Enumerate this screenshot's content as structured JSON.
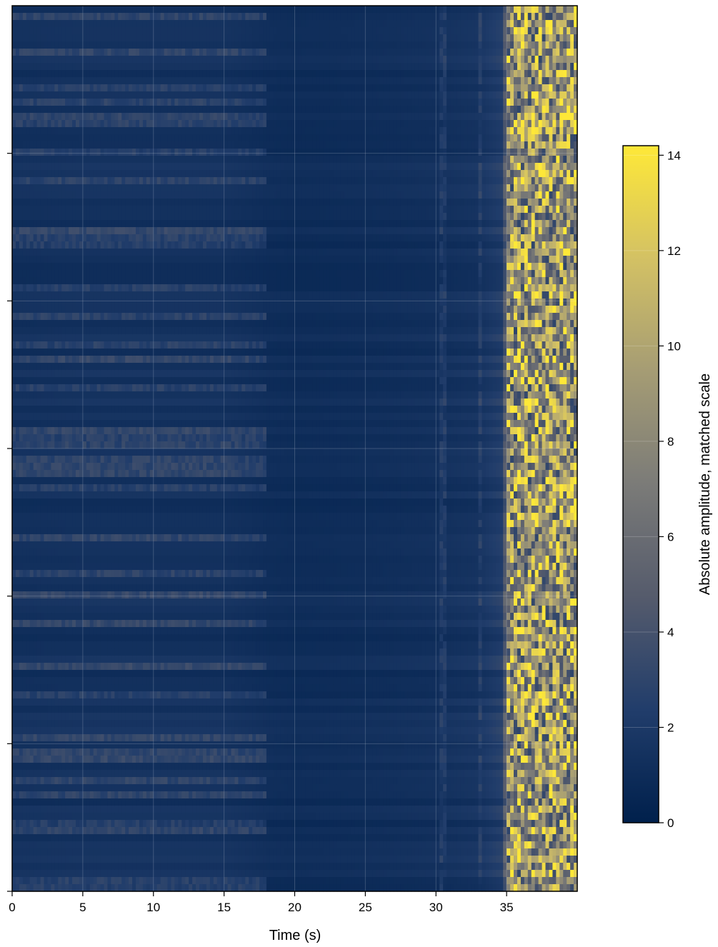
{
  "chart_data": {
    "type": "heatmap",
    "title": "",
    "xlabel": "Time (s)",
    "ylabel": "",
    "xlim": [
      0,
      40
    ],
    "x_ticks": [
      0,
      5,
      10,
      15,
      20,
      25,
      30,
      35
    ],
    "x_tick_labels": [
      "0",
      "5",
      "10",
      "15",
      "20",
      "25",
      "30",
      "35"
    ],
    "y_tick_count": 6,
    "y_tick_labels_shown": false,
    "grid": true,
    "colormap": "cividis",
    "colormap_stops": [
      "#00204c",
      "#213d6b",
      "#555b6c",
      "#7b7b78",
      "#a59c74",
      "#d3c164",
      "#fee838"
    ],
    "colorbar": {
      "label": "Absolute amplitude, matched scale",
      "range": [
        0,
        14.2
      ],
      "ticks": [
        0,
        2,
        4,
        6,
        8,
        10,
        12,
        14
      ],
      "tick_labels": [
        "0",
        "2",
        "4",
        "6",
        "8",
        "10",
        "12",
        "14"
      ]
    },
    "description_values": {
      "background_level": 1.2,
      "noisy_rows_level_0_to_18s": 3.0,
      "onset_time_s": 35,
      "post_onset_level_range": [
        4,
        14
      ]
    },
    "time_columns": [
      {
        "t": 0,
        "value": 1.3
      },
      {
        "t": 5,
        "value": 1.4
      },
      {
        "t": 10,
        "value": 1.4
      },
      {
        "t": 15,
        "value": 1.4
      },
      {
        "t": 18,
        "value": 1.1
      },
      {
        "t": 20,
        "value": 1.0
      },
      {
        "t": 25,
        "value": 1.1
      },
      {
        "t": 30,
        "value": 1.3
      },
      {
        "t": 33,
        "value": 1.6
      },
      {
        "t": 34.8,
        "value": 2.5
      },
      {
        "t": 35.2,
        "value": 13.5
      },
      {
        "t": 36,
        "value": 11.0
      },
      {
        "t": 37,
        "value": 9.5
      },
      {
        "t": 38,
        "value": 10.5
      },
      {
        "t": 39,
        "value": 11.0
      },
      {
        "t": 40,
        "value": 12.0
      }
    ]
  }
}
